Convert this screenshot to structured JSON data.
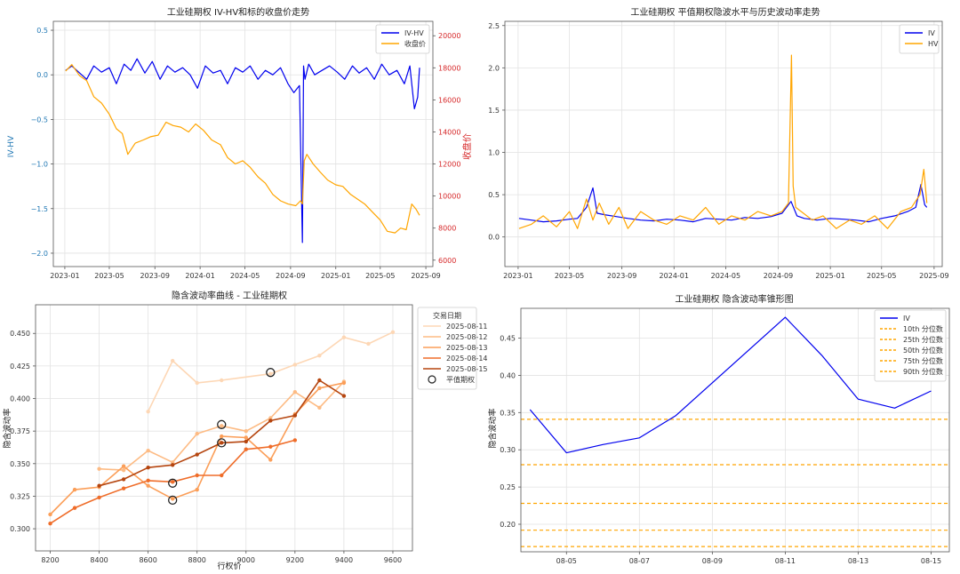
{
  "chart_data": [
    {
      "type": "line",
      "title": "工业硅期权 IV-HV和标的收盘价走势",
      "ylabel": "IV-HV",
      "ylabel2": "收盘价",
      "ylabel_color": "#1f77b4",
      "ylabel2_color": "#d62728",
      "xlim": [
        "2022-12-01",
        "2025-09-20"
      ],
      "ylim": [
        -2.15,
        0.6
      ],
      "ylim2": [
        5600,
        20900
      ],
      "x_ticks": [
        "2023-01",
        "2023-05",
        "2023-09",
        "2024-01",
        "2024-05",
        "2024-09",
        "2025-01",
        "2025-05",
        "2025-09"
      ],
      "y_ticks": [
        0.5,
        0.0,
        -0.5,
        -1.0,
        -1.5,
        -2.0
      ],
      "y_tick_labels": [
        "0.5",
        "0.0",
        "−0.5",
        "−1.0",
        "−1.5",
        "−2.0"
      ],
      "y2_ticks": [
        20000,
        18000,
        16000,
        14000,
        12000,
        10000,
        8000,
        6000
      ],
      "y2_tick_labels": [
        "20000",
        "18000",
        "16000",
        "14000",
        "12000",
        "10000",
        "8000",
        "6000"
      ],
      "grid": true,
      "legend": "top-right",
      "series": [
        {
          "name": "IV-HV",
          "axis": "left",
          "color": "#0000ee",
          "x": [
            "2023-01-03",
            "2023-01-20",
            "2023-02-10",
            "2023-03-01",
            "2023-03-20",
            "2023-04-10",
            "2023-05-01",
            "2023-05-20",
            "2023-06-10",
            "2023-06-28",
            "2023-07-15",
            "2023-08-05",
            "2023-08-25",
            "2023-09-15",
            "2023-10-05",
            "2023-10-25",
            "2023-11-15",
            "2023-12-05",
            "2023-12-25",
            "2024-01-15",
            "2024-02-05",
            "2024-02-25",
            "2024-03-15",
            "2024-04-05",
            "2024-04-25",
            "2024-05-15",
            "2024-06-05",
            "2024-06-25",
            "2024-07-15",
            "2024-08-05",
            "2024-08-25",
            "2024-09-10",
            "2024-09-25",
            "2024-10-03",
            "2024-10-06",
            "2024-10-10",
            "2024-10-20",
            "2024-11-05",
            "2024-11-25",
            "2024-12-15",
            "2025-01-05",
            "2025-01-25",
            "2025-02-15",
            "2025-03-05",
            "2025-03-25",
            "2025-04-15",
            "2025-05-05",
            "2025-05-25",
            "2025-06-15",
            "2025-07-05",
            "2025-07-20",
            "2025-08-01",
            "2025-08-10",
            "2025-08-15"
          ],
          "y": [
            0.05,
            0.1,
            0.02,
            -0.05,
            0.1,
            0.03,
            0.08,
            -0.1,
            0.12,
            0.05,
            0.18,
            0.02,
            0.15,
            -0.05,
            0.1,
            0.03,
            0.08,
            0.0,
            -0.15,
            0.1,
            0.02,
            0.05,
            -0.1,
            0.08,
            0.03,
            0.1,
            -0.05,
            0.05,
            0.0,
            0.08,
            -0.1,
            -0.2,
            -0.12,
            -1.88,
            0.1,
            -0.05,
            0.12,
            0.0,
            0.05,
            0.1,
            0.03,
            -0.05,
            0.1,
            0.02,
            0.08,
            -0.05,
            0.12,
            0.0,
            0.05,
            -0.1,
            0.1,
            -0.38,
            -0.25,
            0.08
          ]
        },
        {
          "name": "收盘价",
          "axis": "right",
          "color": "#ffa500",
          "x": [
            "2023-01-03",
            "2023-01-20",
            "2023-02-10",
            "2023-03-01",
            "2023-03-20",
            "2023-04-10",
            "2023-05-01",
            "2023-05-20",
            "2023-06-05",
            "2023-06-20",
            "2023-07-10",
            "2023-08-01",
            "2023-08-20",
            "2023-09-10",
            "2023-10-01",
            "2023-10-20",
            "2023-11-10",
            "2023-12-01",
            "2023-12-20",
            "2024-01-10",
            "2024-02-01",
            "2024-02-25",
            "2024-03-15",
            "2024-04-05",
            "2024-04-25",
            "2024-05-15",
            "2024-06-05",
            "2024-06-25",
            "2024-07-15",
            "2024-08-05",
            "2024-08-25",
            "2024-09-15",
            "2024-09-28",
            "2024-10-03",
            "2024-10-08",
            "2024-10-15",
            "2024-11-01",
            "2024-11-20",
            "2024-12-10",
            "2025-01-01",
            "2025-01-20",
            "2025-02-10",
            "2025-03-01",
            "2025-03-20",
            "2025-04-10",
            "2025-05-01",
            "2025-05-20",
            "2025-06-10",
            "2025-06-25",
            "2025-07-10",
            "2025-07-25",
            "2025-08-05",
            "2025-08-15"
          ],
          "y": [
            17800,
            18200,
            17500,
            17200,
            16200,
            15800,
            15100,
            14200,
            13900,
            12600,
            13300,
            13500,
            13700,
            13800,
            14600,
            14400,
            14300,
            14000,
            14500,
            14100,
            13500,
            13200,
            12400,
            12000,
            12200,
            11800,
            11200,
            10800,
            10100,
            9700,
            9500,
            9400,
            9700,
            9500,
            12200,
            12600,
            12000,
            11500,
            11000,
            10700,
            10600,
            10100,
            9800,
            9500,
            9000,
            8500,
            7800,
            7700,
            8000,
            7900,
            9500,
            9200,
            8800
          ]
        }
      ]
    },
    {
      "type": "line",
      "title": "工业硅期权 平值期权隐波水平与历史波动率走势",
      "xlim": [
        "2022-12-01",
        "2025-09-20"
      ],
      "ylim": [
        -0.35,
        2.55
      ],
      "x_ticks": [
        "2023-01",
        "2023-05",
        "2023-09",
        "2024-01",
        "2024-05",
        "2024-09",
        "2025-01",
        "2025-05",
        "2025-09"
      ],
      "y_ticks": [
        0.0,
        0.5,
        1.0,
        1.5,
        2.0,
        2.5
      ],
      "y_tick_labels": [
        "0.0",
        "0.5",
        "1.0",
        "1.5",
        "2.0",
        "2.5"
      ],
      "grid": true,
      "legend": "top-right",
      "series": [
        {
          "name": "IV",
          "color": "#0000ee",
          "x": [
            "2023-01-03",
            "2023-02-01",
            "2023-03-01",
            "2023-04-01",
            "2023-05-01",
            "2023-05-20",
            "2023-06-10",
            "2023-06-25",
            "2023-07-05",
            "2023-07-25",
            "2023-08-20",
            "2023-09-15",
            "2023-10-15",
            "2023-11-15",
            "2023-12-15",
            "2024-01-15",
            "2024-02-15",
            "2024-03-15",
            "2024-04-15",
            "2024-05-15",
            "2024-06-15",
            "2024-07-15",
            "2024-08-15",
            "2024-09-10",
            "2024-10-01",
            "2024-10-15",
            "2024-11-01",
            "2024-12-01",
            "2025-01-01",
            "2025-02-01",
            "2025-03-01",
            "2025-04-01",
            "2025-05-01",
            "2025-06-01",
            "2025-07-01",
            "2025-07-20",
            "2025-08-01",
            "2025-08-10",
            "2025-08-15"
          ],
          "y": [
            0.22,
            0.2,
            0.18,
            0.19,
            0.21,
            0.22,
            0.35,
            0.58,
            0.28,
            0.26,
            0.24,
            0.22,
            0.2,
            0.19,
            0.21,
            0.2,
            0.18,
            0.22,
            0.21,
            0.2,
            0.23,
            0.22,
            0.24,
            0.28,
            0.42,
            0.25,
            0.22,
            0.2,
            0.22,
            0.21,
            0.2,
            0.18,
            0.22,
            0.25,
            0.3,
            0.35,
            0.62,
            0.38,
            0.35
          ]
        },
        {
          "name": "HV",
          "color": "#ffa500",
          "x": [
            "2023-01-03",
            "2023-02-01",
            "2023-03-01",
            "2023-04-01",
            "2023-05-01",
            "2023-05-20",
            "2023-06-10",
            "2023-06-25",
            "2023-07-10",
            "2023-08-01",
            "2023-08-25",
            "2023-09-15",
            "2023-10-15",
            "2023-11-15",
            "2023-12-15",
            "2024-01-15",
            "2024-02-15",
            "2024-03-15",
            "2024-04-15",
            "2024-05-15",
            "2024-06-15",
            "2024-07-15",
            "2024-08-15",
            "2024-09-10",
            "2024-09-25",
            "2024-10-02",
            "2024-10-06",
            "2024-10-12",
            "2024-10-25",
            "2024-11-20",
            "2024-12-15",
            "2025-01-15",
            "2025-02-15",
            "2025-03-15",
            "2025-04-15",
            "2025-05-15",
            "2025-06-15",
            "2025-07-10",
            "2025-07-30",
            "2025-08-08",
            "2025-08-15"
          ],
          "y": [
            0.1,
            0.15,
            0.25,
            0.12,
            0.3,
            0.1,
            0.45,
            0.2,
            0.4,
            0.15,
            0.35,
            0.1,
            0.3,
            0.2,
            0.15,
            0.25,
            0.2,
            0.35,
            0.15,
            0.25,
            0.2,
            0.3,
            0.25,
            0.3,
            0.4,
            2.15,
            0.6,
            0.35,
            0.3,
            0.2,
            0.25,
            0.1,
            0.2,
            0.15,
            0.25,
            0.1,
            0.3,
            0.35,
            0.5,
            0.8,
            0.4
          ]
        }
      ]
    },
    {
      "type": "line",
      "title": "隐含波动率曲线 - 工业硅期权",
      "xlabel": "行权价",
      "ylabel": "隐含波动率",
      "xlim": [
        8140,
        9680
      ],
      "ylim": [
        0.283,
        0.472
      ],
      "x_ticks": [
        8200,
        8400,
        8600,
        8800,
        9000,
        9200,
        9400,
        9600
      ],
      "y_ticks": [
        0.3,
        0.325,
        0.35,
        0.375,
        0.4,
        0.425,
        0.45
      ],
      "y_tick_labels": [
        "0.300",
        "0.325",
        "0.350",
        "0.375",
        "0.400",
        "0.425",
        "0.450"
      ],
      "grid": true,
      "legend": "outside-top-right",
      "legend_title": "交易日期",
      "atm_label": "平值期权",
      "series": [
        {
          "name": "2025-08-11",
          "color": "#fdd7b5",
          "x": [
            8600,
            8700,
            8800,
            8900,
            9100,
            9200,
            9300,
            9400,
            9500,
            9600
          ],
          "y": [
            0.39,
            0.429,
            0.412,
            0.414,
            0.419,
            0.426,
            0.433,
            0.447,
            0.442,
            0.451
          ],
          "atm": [
            9100,
            0.42
          ]
        },
        {
          "name": "2025-08-12",
          "color": "#fdbb84",
          "x": [
            8400,
            8500,
            8600,
            8700,
            8800,
            8900,
            9000,
            9100,
            9200,
            9300,
            9400
          ],
          "y": [
            0.346,
            0.345,
            0.36,
            0.351,
            0.373,
            0.379,
            0.375,
            0.385,
            0.405,
            0.393,
            0.413
          ],
          "atm": [
            8900,
            0.38
          ]
        },
        {
          "name": "2025-08-13",
          "color": "#fb9e58",
          "x": [
            8200,
            8300,
            8400,
            8500,
            8600,
            8700,
            8800,
            8900,
            9000,
            9100,
            9200,
            9300,
            9400
          ],
          "y": [
            0.311,
            0.33,
            0.332,
            0.348,
            0.333,
            0.323,
            0.33,
            0.371,
            0.37,
            0.353,
            0.388,
            0.408,
            0.412
          ],
          "atm": [
            8700,
            0.322
          ]
        },
        {
          "name": "2025-08-14",
          "color": "#ef6d2a",
          "x": [
            8200,
            8300,
            8400,
            8500,
            8600,
            8700,
            8800,
            8900,
            9000,
            9100,
            9200
          ],
          "y": [
            0.304,
            0.316,
            0.324,
            0.331,
            0.337,
            0.336,
            0.341,
            0.341,
            0.361,
            0.363,
            0.368
          ],
          "atm": [
            8700,
            0.335
          ]
        },
        {
          "name": "2025-08-15",
          "color": "#b5450f",
          "x": [
            8400,
            8500,
            8600,
            8700,
            8800,
            8900,
            9000,
            9100,
            9200,
            9300,
            9400
          ],
          "y": [
            0.333,
            0.338,
            0.347,
            0.349,
            0.357,
            0.366,
            0.367,
            0.383,
            0.387,
            0.414,
            0.402
          ],
          "atm": [
            8900,
            0.366
          ]
        }
      ]
    },
    {
      "type": "line",
      "title": "工业硅期权 隐含波动率锥形图",
      "ylabel": "隐含波动率",
      "xlim": [
        "2025-08-03 18:00",
        "2025-08-15 12:00"
      ],
      "ylim": [
        0.163,
        0.49
      ],
      "x_ticks": [
        "08-05",
        "08-07",
        "08-09",
        "08-11",
        "08-13",
        "08-15"
      ],
      "x_tick_dates": [
        "2025-08-05",
        "2025-08-07",
        "2025-08-09",
        "2025-08-11",
        "2025-08-13",
        "2025-08-15"
      ],
      "y_ticks": [
        0.2,
        0.25,
        0.3,
        0.35,
        0.4,
        0.45
      ],
      "y_tick_labels": [
        "0.20",
        "0.25",
        "0.30",
        "0.35",
        "0.40",
        "0.45"
      ],
      "grid": true,
      "legend": "top-right",
      "series": [
        {
          "name": "IV",
          "color": "#0000ee",
          "x": [
            "2025-08-04",
            "2025-08-05",
            "2025-08-06",
            "2025-08-07",
            "2025-08-08",
            "2025-08-11",
            "2025-08-12",
            "2025-08-13",
            "2025-08-14",
            "2025-08-15"
          ],
          "y": [
            0.354,
            0.296,
            0.307,
            0.316,
            0.346,
            0.478,
            0.427,
            0.368,
            0.356,
            0.379
          ]
        }
      ],
      "percentiles": [
        {
          "name": "10th 分位数",
          "value": 0.17,
          "color": "#ffa500"
        },
        {
          "name": "25th 分位数",
          "value": 0.192,
          "color": "#ffa500"
        },
        {
          "name": "50th 分位数",
          "value": 0.228,
          "color": "#ffa500"
        },
        {
          "name": "75th 分位数",
          "value": 0.28,
          "color": "#ffa500"
        },
        {
          "name": "90th 分位数",
          "value": 0.341,
          "color": "#ffa500"
        }
      ]
    }
  ]
}
